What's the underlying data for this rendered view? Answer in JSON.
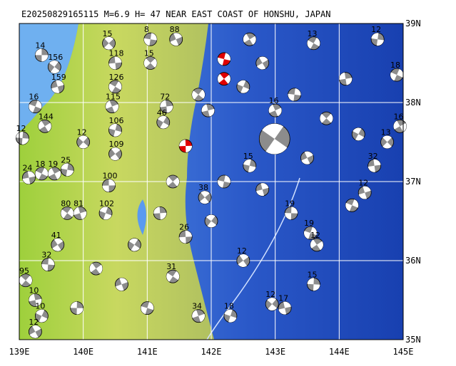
{
  "map": {
    "title": "E20250829165115 M=6.9 H= 47 NEAR EAST COAST OF HONSHU, JAPAN",
    "lonlim": [
      139,
      145
    ],
    "latlim": [
      35,
      39
    ],
    "lonticks": [
      {
        "value": 139,
        "label": "139E"
      },
      {
        "value": 140,
        "label": "140E"
      },
      {
        "value": 141,
        "label": "141E"
      },
      {
        "value": 142,
        "label": "142E"
      },
      {
        "value": 143,
        "label": "143E"
      },
      {
        "value": 144,
        "label": "144E"
      },
      {
        "value": 145,
        "label": "145E"
      }
    ],
    "latticks": [
      {
        "value": 35,
        "label": "35N"
      },
      {
        "value": 36,
        "label": "36N"
      },
      {
        "value": 37,
        "label": "37N"
      },
      {
        "value": 38,
        "label": "38N"
      },
      {
        "value": 39,
        "label": "39N"
      }
    ],
    "ball_color": "#8c8c8c",
    "events": [
      {
        "lon": 139.35,
        "lat": 38.6,
        "depth": 14
      },
      {
        "lon": 139.55,
        "lat": 38.45,
        "depth": 156
      },
      {
        "lon": 139.6,
        "lat": 38.2,
        "depth": 159
      },
      {
        "lon": 139.25,
        "lat": 37.95,
        "depth": 16
      },
      {
        "lon": 139.4,
        "lat": 37.7,
        "depth": 144
      },
      {
        "lon": 139.05,
        "lat": 37.55,
        "depth": 12
      },
      {
        "lon": 140.0,
        "lat": 37.5,
        "depth": 12
      },
      {
        "lon": 139.15,
        "lat": 37.05,
        "depth": 24
      },
      {
        "lon": 139.35,
        "lat": 37.1,
        "depth": 18
      },
      {
        "lon": 139.55,
        "lat": 37.1,
        "depth": 19
      },
      {
        "lon": 139.75,
        "lat": 37.15,
        "depth": 25
      },
      {
        "lon": 140.4,
        "lat": 38.75,
        "depth": 15
      },
      {
        "lon": 140.5,
        "lat": 38.5,
        "depth": 118
      },
      {
        "lon": 140.5,
        "lat": 38.2,
        "depth": 126
      },
      {
        "lon": 140.45,
        "lat": 37.95,
        "depth": 115
      },
      {
        "lon": 140.5,
        "lat": 37.65,
        "depth": 106
      },
      {
        "lon": 140.5,
        "lat": 37.35,
        "depth": 109
      },
      {
        "lon": 140.4,
        "lat": 36.95,
        "depth": 100
      },
      {
        "lon": 139.75,
        "lat": 36.6,
        "depth": 80
      },
      {
        "lon": 139.95,
        "lat": 36.6,
        "depth": 81
      },
      {
        "lon": 140.35,
        "lat": 36.6,
        "depth": 102
      },
      {
        "lon": 139.6,
        "lat": 36.2,
        "depth": 41
      },
      {
        "lon": 139.45,
        "lat": 35.95,
        "depth": 32
      },
      {
        "lon": 139.1,
        "lat": 35.75,
        "depth": 95
      },
      {
        "lon": 139.25,
        "lat": 35.5,
        "depth": 10
      },
      {
        "lon": 139.35,
        "lat": 35.3,
        "depth": 10
      },
      {
        "lon": 139.25,
        "lat": 35.1,
        "depth": 12
      },
      {
        "lon": 141.05,
        "lat": 38.8,
        "depth": 8
      },
      {
        "lon": 141.05,
        "lat": 38.5,
        "depth": 15
      },
      {
        "lon": 141.3,
        "lat": 37.95,
        "depth": 72
      },
      {
        "lon": 141.25,
        "lat": 37.75,
        "depth": 46
      },
      {
        "lon": 141.45,
        "lat": 38.8,
        "depth": 88
      },
      {
        "lon": 142.2,
        "lat": 38.55,
        "depth": null,
        "color": "#e00000"
      },
      {
        "lon": 142.2,
        "lat": 38.3,
        "depth": null,
        "color": "#e00000"
      },
      {
        "lon": 141.6,
        "lat": 37.45,
        "depth": null,
        "color": "#e00000"
      },
      {
        "lon": 142.99,
        "lat": 37.54,
        "depth": null,
        "mag": 6.9
      },
      {
        "lon": 144.4,
        "lat": 36.86,
        "depth": 12
      },
      {
        "lon": 143.55,
        "lat": 36.35,
        "depth": 19
      },
      {
        "lon": 143.65,
        "lat": 36.2,
        "depth": 12
      },
      {
        "lon": 143.6,
        "lat": 35.7,
        "depth": 15
      },
      {
        "lon": 142.95,
        "lat": 35.45,
        "depth": 12
      },
      {
        "lon": 143.15,
        "lat": 35.4,
        "depth": 17
      },
      {
        "lon": 144.9,
        "lat": 38.35,
        "depth": 18
      },
      {
        "lon": 144.95,
        "lat": 37.7,
        "depth": 16
      },
      {
        "lon": 144.6,
        "lat": 38.8,
        "depth": 12
      },
      {
        "lon": 144.75,
        "lat": 37.5,
        "depth": 13
      },
      {
        "lon": 144.55,
        "lat": 37.2,
        "depth": 32
      },
      {
        "lon": 143.6,
        "lat": 38.75,
        "depth": 13
      },
      {
        "lon": 143.0,
        "lat": 37.9,
        "depth": 16
      },
      {
        "lon": 142.6,
        "lat": 37.2,
        "depth": 15
      },
      {
        "lon": 141.9,
        "lat": 36.8,
        "depth": 38
      },
      {
        "lon": 141.6,
        "lat": 36.3,
        "depth": 26
      },
      {
        "lon": 141.4,
        "lat": 35.8,
        "depth": 31
      },
      {
        "lon": 141.8,
        "lat": 35.3,
        "depth": 34
      },
      {
        "lon": 142.3,
        "lat": 35.3,
        "depth": 18
      },
      {
        "lon": 142.5,
        "lat": 36.0,
        "depth": 12
      },
      {
        "lon": 143.25,
        "lat": 36.6,
        "depth": 19
      },
      {
        "lon": 141.8,
        "lat": 38.1,
        "depth": null
      },
      {
        "lon": 141.95,
        "lat": 37.9,
        "depth": null
      },
      {
        "lon": 142.5,
        "lat": 38.2,
        "depth": null
      },
      {
        "lon": 142.8,
        "lat": 38.5,
        "depth": null
      },
      {
        "lon": 143.3,
        "lat": 38.1,
        "depth": null
      },
      {
        "lon": 143.8,
        "lat": 37.8,
        "depth": null
      },
      {
        "lon": 144.1,
        "lat": 38.3,
        "depth": null
      },
      {
        "lon": 144.3,
        "lat": 37.6,
        "depth": null
      },
      {
        "lon": 143.5,
        "lat": 37.3,
        "depth": null
      },
      {
        "lon": 142.2,
        "lat": 37.0,
        "depth": null
      },
      {
        "lon": 141.4,
        "lat": 37.0,
        "depth": null
      },
      {
        "lon": 141.2,
        "lat": 36.6,
        "depth": null
      },
      {
        "lon": 140.8,
        "lat": 36.2,
        "depth": null
      },
      {
        "lon": 140.6,
        "lat": 35.7,
        "depth": null
      },
      {
        "lon": 141.0,
        "lat": 35.4,
        "depth": null
      },
      {
        "lon": 140.2,
        "lat": 35.9,
        "depth": null
      },
      {
        "lon": 139.9,
        "lat": 35.4,
        "depth": null
      },
      {
        "lon": 142.0,
        "lat": 36.5,
        "depth": null
      },
      {
        "lon": 142.8,
        "lat": 36.9,
        "depth": null
      },
      {
        "lon": 144.2,
        "lat": 36.7,
        "depth": null
      },
      {
        "lon": 142.6,
        "lat": 38.8,
        "depth": null
      }
    ]
  }
}
